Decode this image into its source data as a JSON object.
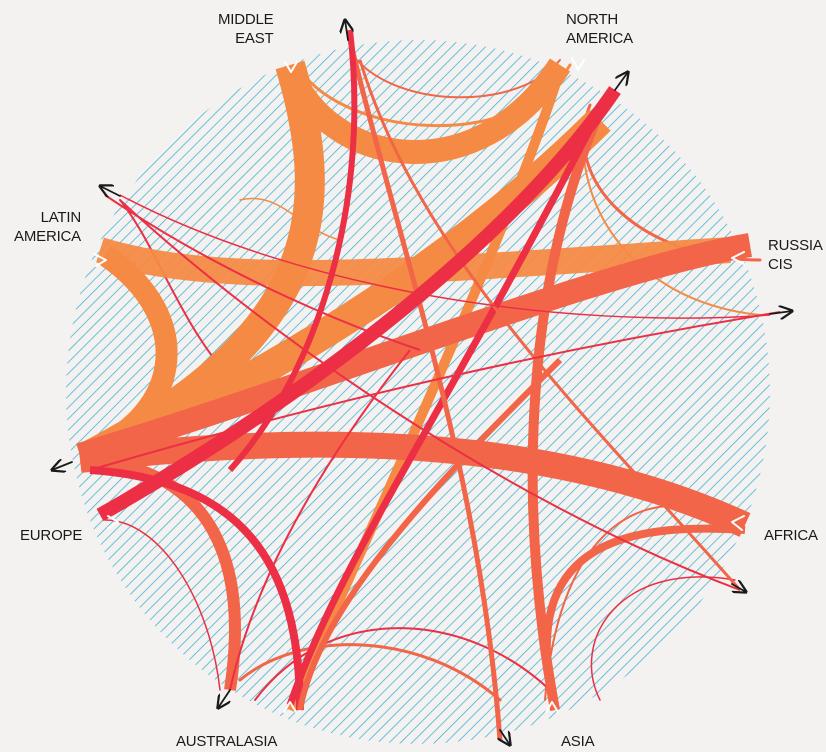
{
  "regions": {
    "middle_east": [
      "MIDDLE",
      "EAST"
    ],
    "north_america": [
      "NORTH",
      "AMERICA"
    ],
    "latin_america": [
      "LATIN",
      "AMERICA"
    ],
    "russia_cis": [
      "RUSSIA",
      "CIS"
    ],
    "europe": "EUROPE",
    "africa": "AFRICA",
    "australasia": "AUSTRALASIA",
    "asia": "ASIA"
  },
  "colors": {
    "background": "#f4f2f1",
    "hatch": "#45b3d6",
    "orange": "#f58a45",
    "red": "#ec2f45",
    "coral": "#f26548",
    "arrow": "#1a1a1a"
  }
}
